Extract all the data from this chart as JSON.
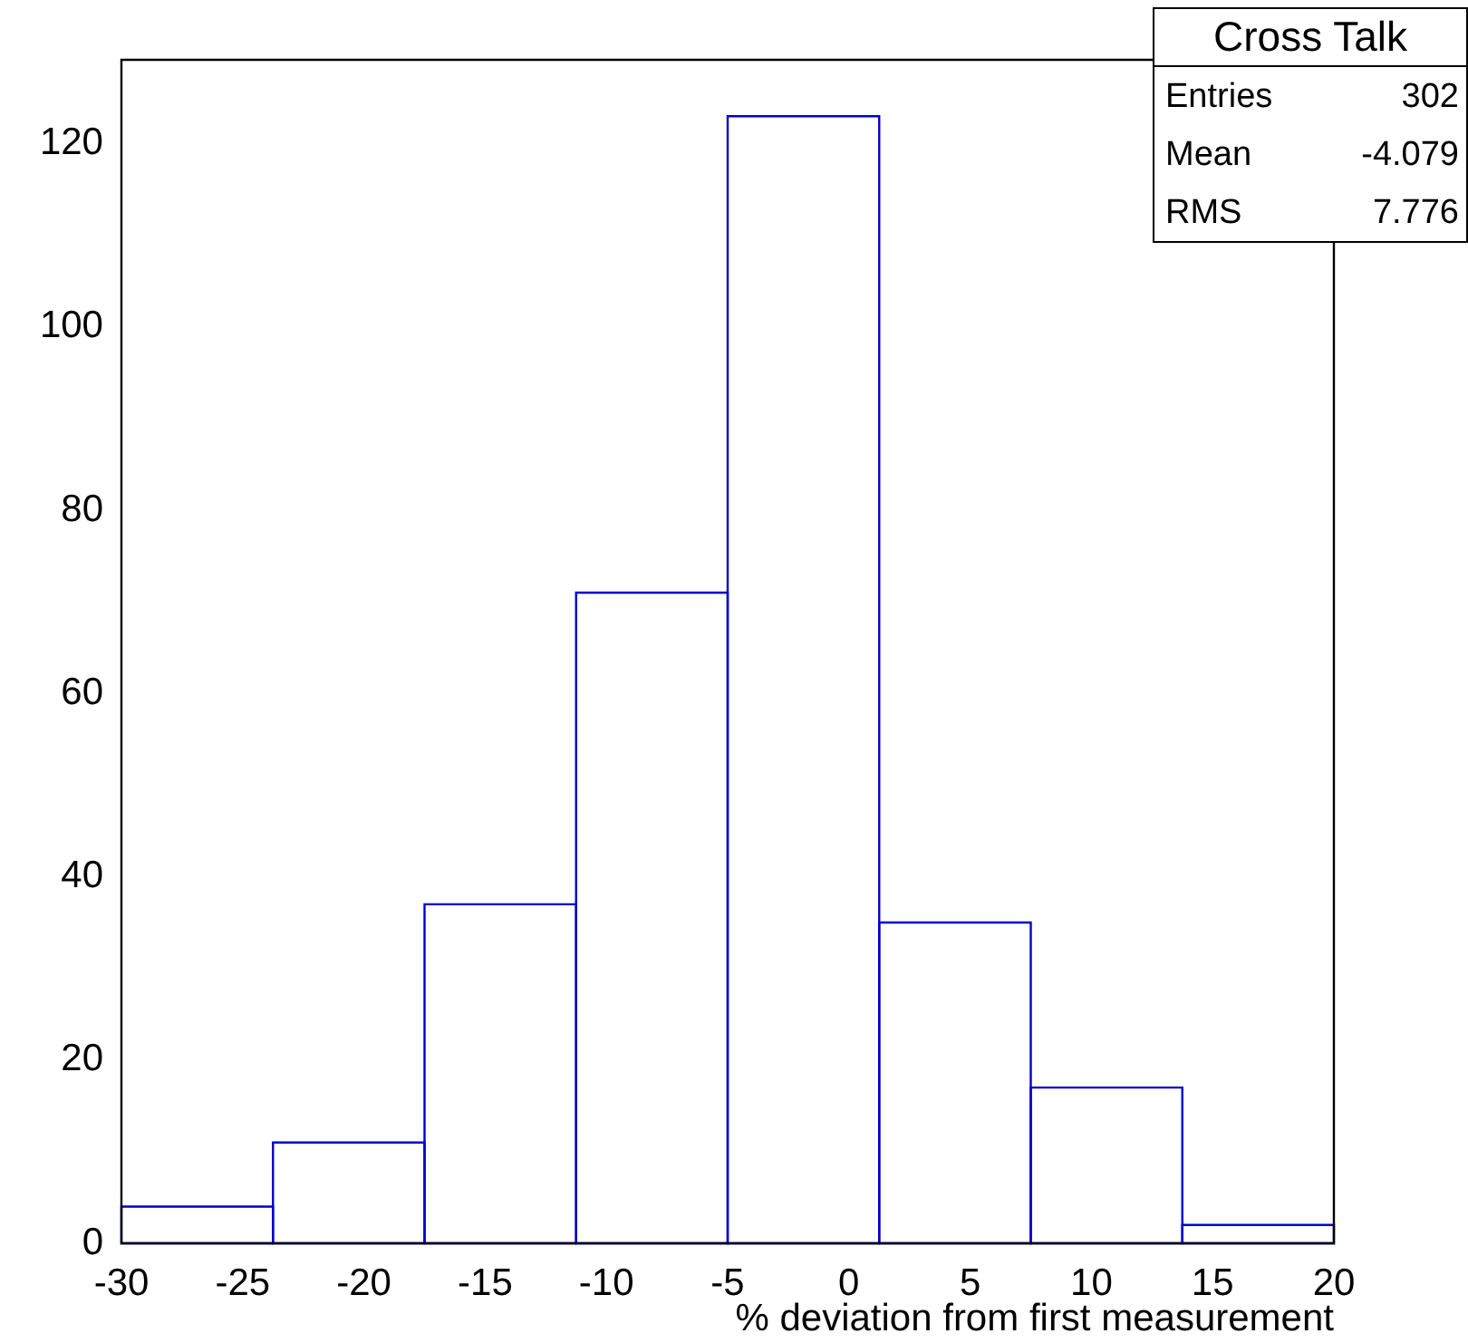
{
  "chart_data": {
    "type": "histogram",
    "title": "Cross Talk",
    "xlabel": "% deviation from first measurement",
    "bins": [
      -30,
      -23.75,
      -17.5,
      -11.25,
      -5,
      1.25,
      7.5,
      13.75,
      20
    ],
    "values": [
      4,
      11,
      37,
      71,
      123,
      35,
      17,
      2
    ],
    "color": "#0000cc",
    "xlim": [
      -30,
      20
    ],
    "xticks": [
      -30,
      -25,
      -20,
      -15,
      -10,
      -5,
      0,
      5,
      10,
      15,
      20
    ],
    "ylim": [
      0,
      129.15
    ],
    "yticks": [
      0,
      20,
      40,
      60,
      80,
      100,
      120
    ],
    "annotations": [
      "Entries",
      "302",
      "Mean",
      "-4.079",
      "RMS",
      "7.776"
    ],
    "grid": false,
    "legend": false
  }
}
